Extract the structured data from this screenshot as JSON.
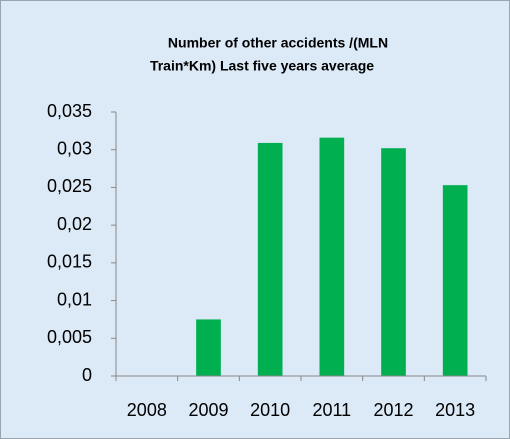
{
  "chart_data": {
    "type": "bar",
    "title": [
      "Number of  other accidents /(MLN",
      "Train*Km)   Last five years average"
    ],
    "categories": [
      "2008",
      "2009",
      "2010",
      "2011",
      "2012",
      "2013"
    ],
    "values": [
      0,
      0.0075,
      0.0309,
      0.0316,
      0.0302,
      0.0253
    ],
    "color": "#00b050",
    "ylim": [
      0,
      0.035
    ],
    "yticks": [
      0,
      {
        "value": 0.005,
        "label": "0,005"
      },
      {
        "value": 0.01,
        "label": "0,01"
      },
      {
        "value": 0.015,
        "label": "0,015"
      },
      {
        "value": 0.02,
        "label": "0,02"
      },
      {
        "value": 0.025,
        "label": "0,025"
      },
      {
        "value": 0.03,
        "label": "0,03"
      },
      {
        "value": 0.035,
        "label": "0,035"
      }
    ],
    "grid": false
  }
}
